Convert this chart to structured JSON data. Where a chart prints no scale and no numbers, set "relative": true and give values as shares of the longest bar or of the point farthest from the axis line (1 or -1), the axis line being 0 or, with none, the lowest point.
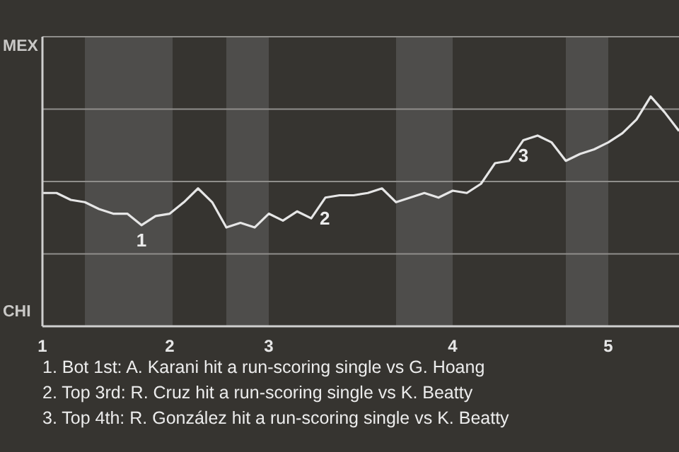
{
  "chart_data": {
    "type": "line",
    "relative": true,
    "categories": [
      "1",
      null,
      null,
      null,
      null,
      null,
      null,
      null,
      null,
      "2",
      null,
      null,
      null,
      null,
      null,
      null,
      "3",
      null,
      null,
      null,
      null,
      null,
      null,
      null,
      null,
      null,
      null,
      null,
      null,
      "4",
      null,
      null,
      null,
      null,
      null,
      null,
      null,
      null,
      null,
      null,
      "5",
      null,
      null,
      null,
      null,
      null
    ],
    "series": [
      {
        "color": "#e6e6e6",
        "values": [
          0.58,
          0.58,
          0.55,
          0.54,
          0.51,
          0.49,
          0.49,
          0.44,
          0.48,
          0.49,
          0.54,
          0.6,
          0.54,
          0.43,
          0.45,
          0.43,
          0.49,
          0.46,
          0.5,
          0.47,
          0.56,
          0.57,
          0.57,
          0.58,
          0.6,
          0.54,
          0.56,
          0.58,
          0.56,
          0.59,
          0.58,
          0.62,
          0.71,
          0.72,
          0.81,
          0.83,
          0.8,
          0.72,
          0.75,
          0.77,
          0.8,
          0.84,
          0.9,
          1,
          0.93,
          0.85
        ]
      }
    ],
    "grid": "y",
    "legend": false,
    "marker": "none",
    "line_style": "solid",
    "annotations": [
      "MEX",
      "CHI",
      "1",
      "2",
      "3",
      "1. Bot 1st: A. Karani hit a run-scoring single vs G. Hoang",
      "2. Top 3rd: R. Cruz hit a run-scoring single vs K. Beatty",
      "3. Top 4th: R. González hit a run-scoring single vs K. Beatty"
    ]
  }
}
